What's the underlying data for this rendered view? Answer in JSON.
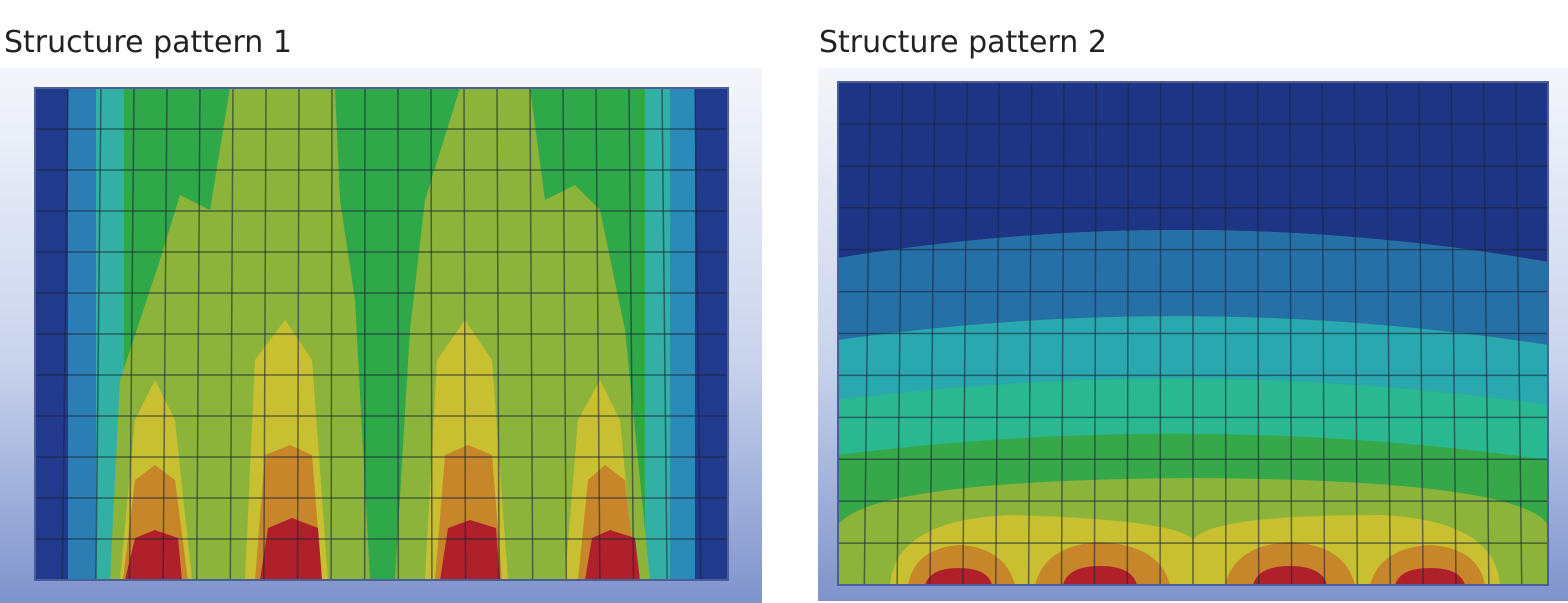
{
  "panels": [
    {
      "title": "Structure pattern 1"
    },
    {
      "title": "Structure pattern 2"
    }
  ]
}
